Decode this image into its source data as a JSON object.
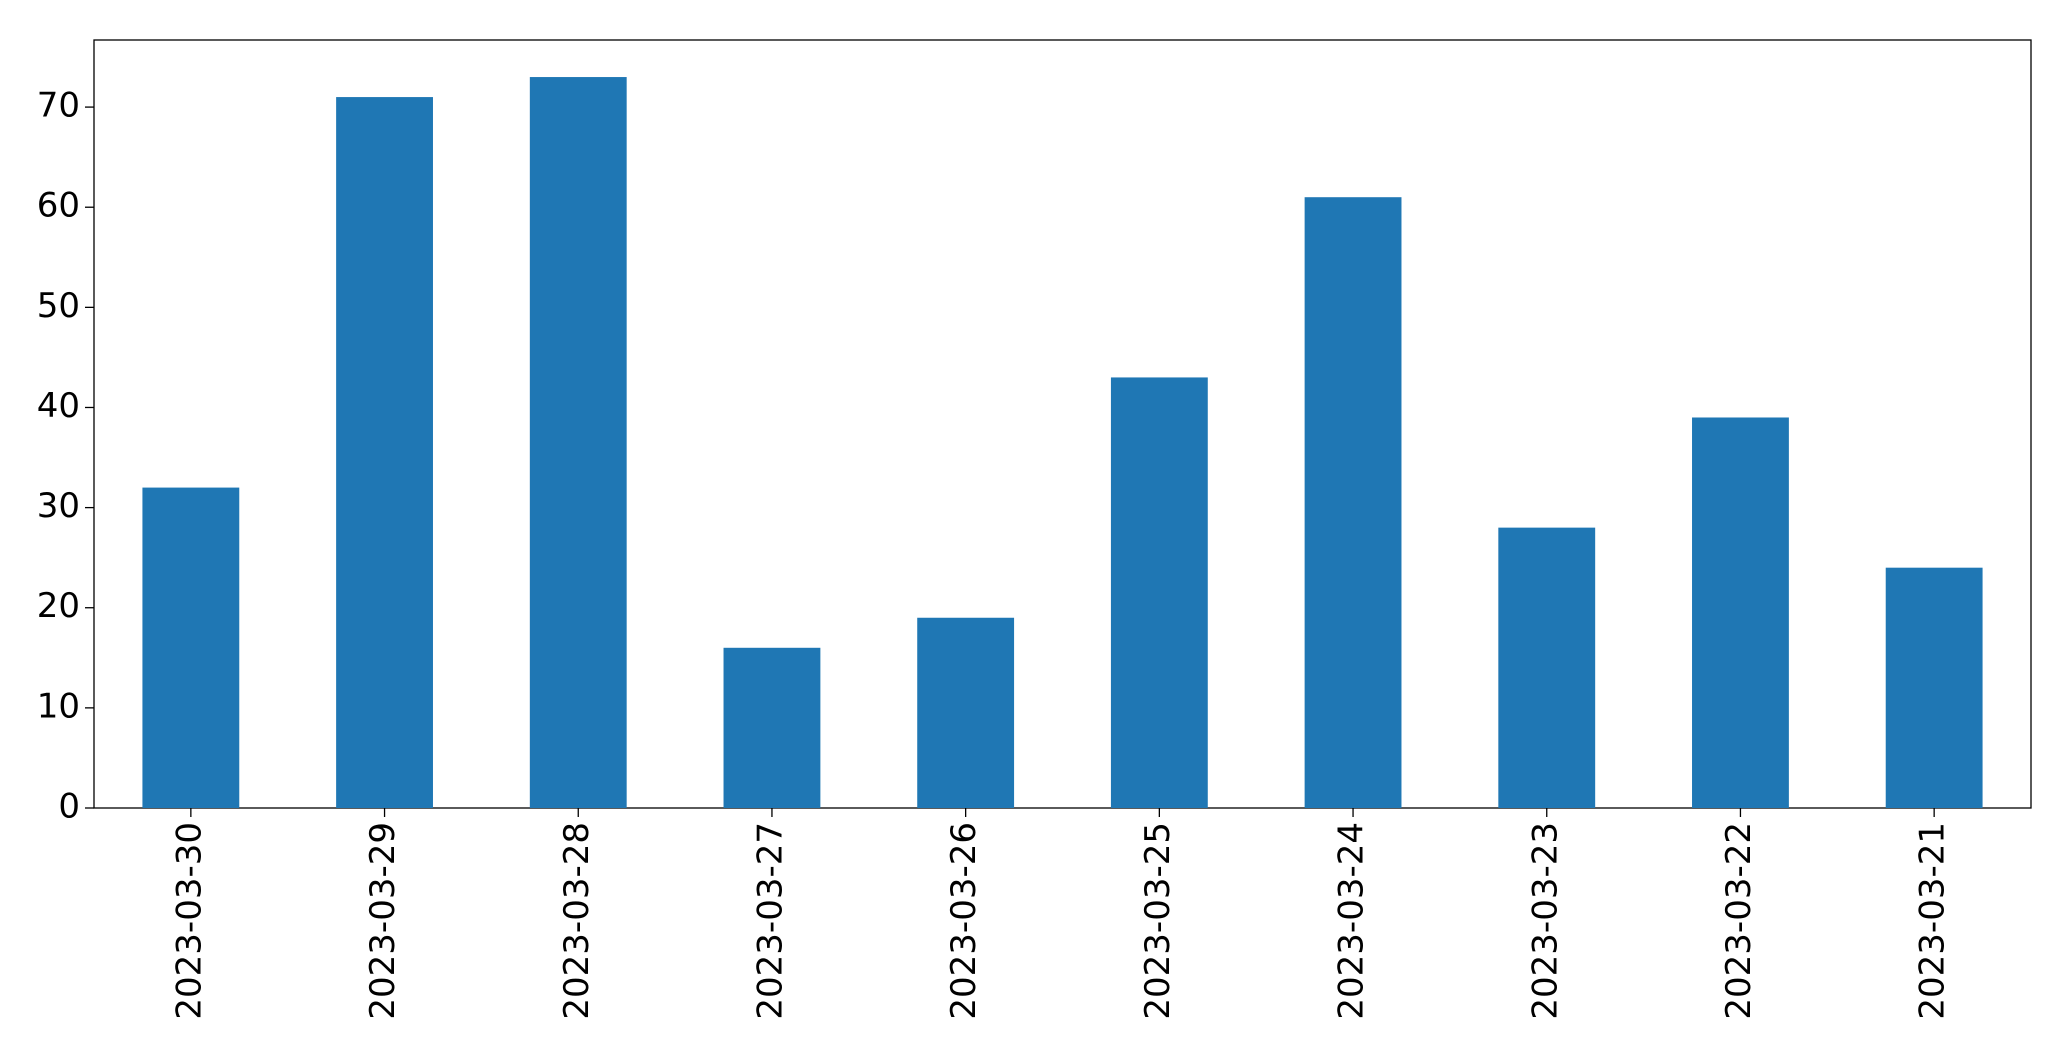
{
  "chart_data": {
    "type": "bar",
    "categories": [
      "2023-03-30",
      "2023-03-29",
      "2023-03-28",
      "2023-03-27",
      "2023-03-26",
      "2023-03-25",
      "2023-03-24",
      "2023-03-23",
      "2023-03-22",
      "2023-03-21"
    ],
    "values": [
      32,
      71,
      73,
      16,
      19,
      43,
      61,
      28,
      39,
      24
    ],
    "color": "#1f77b4",
    "ylim": [
      0,
      76.7
    ],
    "yticks": [
      0,
      10,
      20,
      30,
      40,
      50,
      60,
      70
    ],
    "grid": false
  }
}
